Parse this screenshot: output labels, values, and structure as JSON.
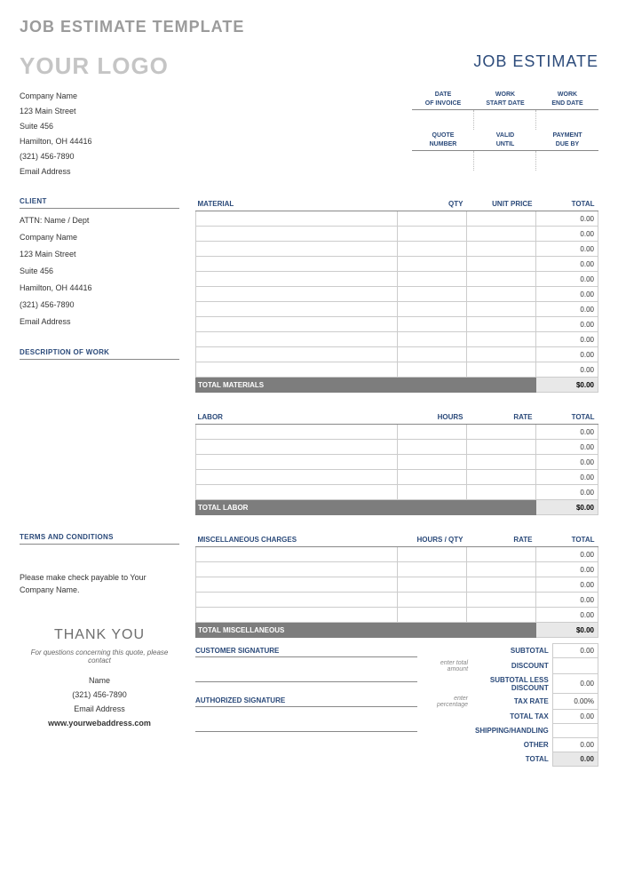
{
  "page_title": "JOB ESTIMATE TEMPLATE",
  "logo_text": "YOUR LOGO",
  "doc_title": "JOB ESTIMATE",
  "colors": {
    "heading": "#2b4a7a",
    "muted": "#9b9b9b",
    "logo": "#c5c5c5",
    "totalbar": "#7d7d7d",
    "totalval": "#e8e8e8",
    "border": "#cccccc"
  },
  "company": {
    "name": "Company Name",
    "street": "123 Main Street",
    "suite": "Suite 456",
    "city": "Hamilton, OH  44416",
    "phone": "(321) 456-7890",
    "email": "Email Address"
  },
  "date_headers": {
    "row1": [
      "DATE\nOF INVOICE",
      "WORK\nSTART DATE",
      "WORK\nEND DATE"
    ],
    "row2": [
      "QUOTE\nNUMBER",
      "VALID\nUNTIL",
      "PAYMENT\nDUE BY"
    ]
  },
  "client": {
    "heading": "CLIENT",
    "attn": "ATTN: Name / Dept",
    "name": "Company Name",
    "street": "123 Main Street",
    "suite": "Suite 456",
    "city": "Hamilton, OH  44416",
    "phone": "(321) 456-7890",
    "email": "Email Address"
  },
  "desc_heading": "DESCRIPTION OF WORK",
  "materials": {
    "headers": [
      "MATERIAL",
      "QTY",
      "UNIT PRICE",
      "TOTAL"
    ],
    "rows": 11,
    "row_total": "0.00",
    "total_label": "TOTAL MATERIALS",
    "total_value": "$0.00"
  },
  "labor": {
    "headers": [
      "LABOR",
      "HOURS",
      "RATE",
      "TOTAL"
    ],
    "rows": 5,
    "row_total": "0.00",
    "total_label": "TOTAL LABOR",
    "total_value": "$0.00"
  },
  "terms_heading": "TERMS AND CONDITIONS",
  "terms_text": "Please make check payable to Your Company Name.",
  "misc": {
    "headers": [
      "MISCELLANEOUS CHARGES",
      "HOURS / QTY",
      "RATE",
      "TOTAL"
    ],
    "rows": 5,
    "row_total": "0.00",
    "total_label": "TOTAL MISCELLANEOUS",
    "total_value": "$0.00"
  },
  "thank_you": "THANK YOU",
  "contact_note": "For questions concerning this quote, please contact",
  "contact": {
    "name": "Name",
    "phone": "(321) 456-7890",
    "email": "Email Address",
    "web": "www.yourwebaddress.com"
  },
  "sig": {
    "customer": "CUSTOMER SIGNATURE",
    "authorized": "AUTHORIZED SIGNATURE"
  },
  "summary": {
    "subtotal": {
      "label": "SUBTOTAL",
      "val": "0.00"
    },
    "discount": {
      "hint": "enter total amount",
      "label": "DISCOUNT",
      "val": ""
    },
    "less": {
      "label": "SUBTOTAL LESS DISCOUNT",
      "val": "0.00"
    },
    "taxrate": {
      "hint": "enter percentage",
      "label": "TAX RATE",
      "val": "0.00%"
    },
    "tax": {
      "label": "TOTAL TAX",
      "val": "0.00"
    },
    "ship": {
      "label": "SHIPPING/HANDLING",
      "val": ""
    },
    "other": {
      "label": "OTHER",
      "val": "0.00"
    },
    "total": {
      "label": "TOTAL",
      "val": "0.00"
    }
  }
}
